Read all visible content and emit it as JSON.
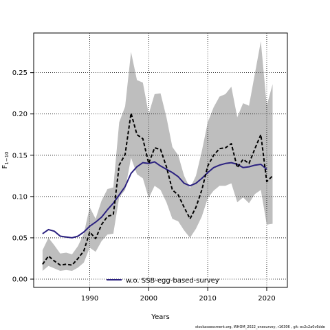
{
  "chart_data": {
    "type": "line",
    "xlabel": "Years",
    "ylabel_main": "F",
    "ylabel_sub": "1−10",
    "xlim": [
      1980.5,
      2023.5
    ],
    "ylim": [
      -0.01,
      0.298
    ],
    "x_ticks": [
      1990,
      2000,
      2010,
      2020
    ],
    "y_ticks": [
      0.0,
      0.05,
      0.1,
      0.15,
      0.2,
      0.25
    ],
    "y_tick_labels": [
      "0.00",
      "0.05",
      "0.10",
      "0.15",
      "0.20",
      "0.25"
    ],
    "grid": true,
    "legend": {
      "placement": "bottom-center",
      "entries": [
        "w.o. SSB-egg-based-survey"
      ]
    },
    "series": [
      {
        "name": "w.o. SSB-egg-based-survey",
        "color": "#2b2180",
        "style": "solid",
        "x": [
          1982,
          1983,
          1984,
          1985,
          1986,
          1987,
          1988,
          1989,
          1990,
          1991,
          1992,
          1993,
          1994,
          1995,
          1996,
          1997,
          1998,
          1999,
          2000,
          2001,
          2002,
          2003,
          2004,
          2005,
          2006,
          2007,
          2008,
          2009,
          2010,
          2011,
          2012,
          2013,
          2014,
          2015,
          2016,
          2017,
          2018,
          2019,
          2020
        ],
        "y": [
          0.055,
          0.06,
          0.058,
          0.052,
          0.051,
          0.05,
          0.052,
          0.057,
          0.064,
          0.069,
          0.075,
          0.084,
          0.092,
          0.102,
          0.112,
          0.128,
          0.136,
          0.141,
          0.14,
          0.142,
          0.137,
          0.133,
          0.129,
          0.124,
          0.116,
          0.113,
          0.116,
          0.122,
          0.129,
          0.135,
          0.138,
          0.14,
          0.141,
          0.139,
          0.135,
          0.136,
          0.138,
          0.139,
          0.133
        ]
      },
      {
        "name": "",
        "color": "#000000",
        "style": "dashed",
        "x": [
          1982,
          1983,
          1984,
          1985,
          1986,
          1987,
          1988,
          1989,
          1990,
          1991,
          1992,
          1993,
          1994,
          1995,
          1996,
          1997,
          1998,
          1999,
          2000,
          2001,
          2002,
          2003,
          2004,
          2005,
          2006,
          2007,
          2008,
          2009,
          2010,
          2011,
          2012,
          2013,
          2014,
          2015,
          2016,
          2017,
          2018,
          2019,
          2020,
          2021
        ],
        "y": [
          0.018,
          0.028,
          0.022,
          0.017,
          0.018,
          0.017,
          0.025,
          0.034,
          0.057,
          0.049,
          0.066,
          0.076,
          0.078,
          0.138,
          0.151,
          0.201,
          0.175,
          0.17,
          0.14,
          0.159,
          0.157,
          0.136,
          0.108,
          0.102,
          0.087,
          0.073,
          0.087,
          0.108,
          0.137,
          0.15,
          0.158,
          0.159,
          0.164,
          0.135,
          0.145,
          0.14,
          0.158,
          0.175,
          0.118,
          0.125
        ]
      }
    ],
    "band": {
      "color": "#bebebe",
      "x": [
        1982,
        1983,
        1984,
        1985,
        1986,
        1987,
        1988,
        1989,
        1990,
        1991,
        1992,
        1993,
        1994,
        1995,
        1996,
        1997,
        1998,
        1999,
        2000,
        2001,
        2002,
        2003,
        2004,
        2005,
        2006,
        2007,
        2008,
        2009,
        2010,
        2011,
        2012,
        2013,
        2014,
        2015,
        2016,
        2017,
        2018,
        2019,
        2020,
        2021
      ],
      "upper": [
        0.035,
        0.05,
        0.041,
        0.031,
        0.032,
        0.03,
        0.04,
        0.055,
        0.087,
        0.073,
        0.095,
        0.109,
        0.111,
        0.19,
        0.209,
        0.275,
        0.241,
        0.238,
        0.2,
        0.224,
        0.225,
        0.196,
        0.16,
        0.15,
        0.125,
        0.11,
        0.125,
        0.155,
        0.19,
        0.208,
        0.221,
        0.224,
        0.233,
        0.196,
        0.213,
        0.21,
        0.249,
        0.288,
        0.21,
        0.236
      ],
      "lower": [
        0.01,
        0.016,
        0.013,
        0.01,
        0.011,
        0.01,
        0.014,
        0.02,
        0.038,
        0.033,
        0.046,
        0.054,
        0.055,
        0.099,
        0.108,
        0.147,
        0.127,
        0.122,
        0.098,
        0.113,
        0.108,
        0.093,
        0.073,
        0.07,
        0.059,
        0.05,
        0.061,
        0.076,
        0.098,
        0.107,
        0.113,
        0.113,
        0.116,
        0.093,
        0.099,
        0.092,
        0.103,
        0.108,
        0.066,
        0.067
      ]
    }
  },
  "footer": "stockassessment.org,  WHOM_2022_onesurvey,  r16306 ,  git:  ec2c2a0c6dde"
}
